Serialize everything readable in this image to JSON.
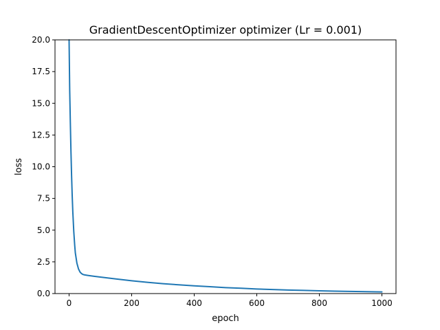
{
  "chart_data": {
    "type": "line",
    "title": "GradientDescentOptimizer optimizer (Lr = 0.001)",
    "xlabel": "epoch",
    "ylabel": "loss",
    "xlim": [
      -45,
      1045
    ],
    "ylim": [
      0,
      20
    ],
    "xticks": [
      0,
      200,
      400,
      600,
      800,
      1000
    ],
    "xtick_labels": [
      "0",
      "200",
      "400",
      "600",
      "800",
      "1000"
    ],
    "yticks": [
      0.0,
      2.5,
      5.0,
      7.5,
      10.0,
      12.5,
      15.0,
      17.5,
      20.0
    ],
    "ytick_labels": [
      "0.0",
      "2.5",
      "5.0",
      "7.5",
      "10.0",
      "12.5",
      "15.0",
      "17.5",
      "20.0"
    ],
    "grid": false,
    "colors": {
      "line": "#1f77b4"
    },
    "series": [
      {
        "x": [
          0,
          2,
          4,
          6,
          8,
          10,
          12,
          15,
          18,
          20,
          25,
          30,
          35,
          40,
          45,
          50,
          60,
          80,
          100,
          150,
          200,
          250,
          300,
          350,
          400,
          450,
          500,
          550,
          600,
          650,
          700,
          750,
          800,
          850,
          900,
          950,
          1000
        ],
        "values": [
          20.0,
          16.0,
          13.5,
          11.2,
          9.3,
          7.7,
          6.4,
          4.9,
          3.8,
          3.2,
          2.4,
          1.95,
          1.7,
          1.57,
          1.5,
          1.47,
          1.43,
          1.36,
          1.3,
          1.15,
          1.01,
          0.89,
          0.78,
          0.69,
          0.61,
          0.54,
          0.47,
          0.42,
          0.36,
          0.32,
          0.28,
          0.25,
          0.22,
          0.19,
          0.17,
          0.15,
          0.13
        ]
      }
    ]
  }
}
